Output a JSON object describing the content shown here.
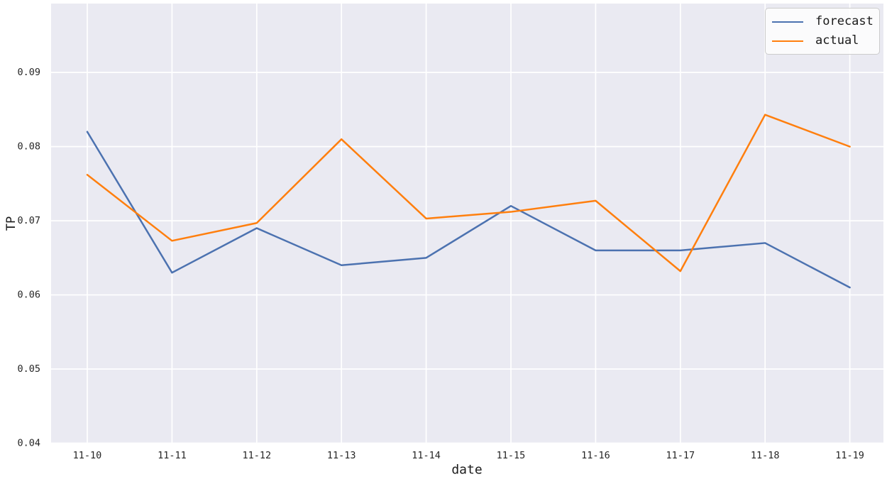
{
  "chart_data": {
    "type": "line",
    "title": "",
    "xlabel": "date",
    "ylabel": "TP",
    "categories": [
      "11-10",
      "11-11",
      "11-12",
      "11-13",
      "11-14",
      "11-15",
      "11-16",
      "11-17",
      "11-18",
      "11-19"
    ],
    "series": [
      {
        "name": "forecast",
        "color": "#4C72B0",
        "values": [
          0.082,
          0.063,
          0.069,
          0.064,
          0.065,
          0.072,
          0.066,
          0.066,
          0.067,
          0.061
        ]
      },
      {
        "name": "actual",
        "color": "#FF7F0E",
        "values": [
          0.0762,
          0.0673,
          0.0697,
          0.081,
          0.0703,
          0.0712,
          0.0727,
          0.0632,
          0.0843,
          0.08
        ]
      }
    ],
    "ylim": [
      0.04,
      0.0993
    ],
    "yticks": [
      0.04,
      0.05,
      0.06,
      0.07,
      0.08,
      0.09
    ],
    "ytick_labels": [
      "0.04",
      "0.05",
      "0.06",
      "0.07",
      "0.08",
      "0.09"
    ],
    "grid": true,
    "legend_position": "upper right",
    "plot_background": "#EAEAF2",
    "grid_color": "#FFFFFF",
    "text_color": "#262626"
  }
}
